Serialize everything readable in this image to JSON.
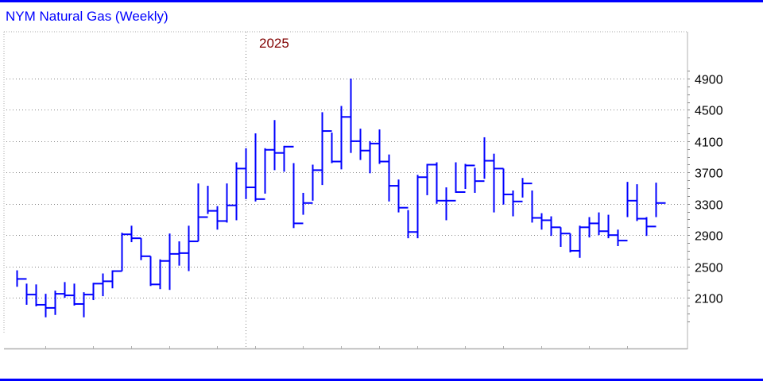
{
  "title": "NYM Natural Gas (Weekly)",
  "colors": {
    "bars": "#0000ff",
    "title": "#0000ff",
    "year_label": "#800000",
    "frame": "#0000ff",
    "grid": "#888888"
  },
  "chart_data": {
    "type": "ohlc-bar",
    "title": "NYM Natural Gas (Weekly)",
    "year_label": "2025",
    "bar_fields": [
      "high",
      "low",
      "close"
    ],
    "ylim": [
      1700,
      5000
    ],
    "y_ticks": [
      2100,
      2500,
      2900,
      3300,
      3700,
      4100,
      4500,
      4900
    ],
    "y_axis_side": "right",
    "grid": true,
    "bars": [
      [
        2450,
        2240,
        2340
      ],
      [
        2280,
        2010,
        2140
      ],
      [
        2270,
        1990,
        2010
      ],
      [
        2150,
        1850,
        1970
      ],
      [
        2190,
        1880,
        2150
      ],
      [
        2300,
        2100,
        2130
      ],
      [
        2280,
        2000,
        2020
      ],
      [
        2170,
        1850,
        2140
      ],
      [
        2290,
        2070,
        2280
      ],
      [
        2410,
        2120,
        2310
      ],
      [
        2450,
        2220,
        2440
      ],
      [
        2930,
        2440,
        2910
      ],
      [
        3020,
        2810,
        2860
      ],
      [
        2860,
        2580,
        2630
      ],
      [
        2630,
        2250,
        2270
      ],
      [
        2590,
        2210,
        2570
      ],
      [
        2920,
        2200,
        2660
      ],
      [
        2820,
        2510,
        2670
      ],
      [
        3020,
        2440,
        2820
      ],
      [
        3560,
        2820,
        3130
      ],
      [
        3530,
        3170,
        3210
      ],
      [
        3270,
        2970,
        3080
      ],
      [
        3560,
        3060,
        3280
      ],
      [
        3830,
        3090,
        3750
      ],
      [
        4010,
        3360,
        3510
      ],
      [
        4200,
        3330,
        3360
      ],
      [
        4010,
        3430,
        3990
      ],
      [
        4370,
        3730,
        3950
      ],
      [
        4040,
        3710,
        4030
      ],
      [
        3820,
        2990,
        3050
      ],
      [
        3440,
        3160,
        3310
      ],
      [
        3800,
        3340,
        3730
      ],
      [
        4470,
        3540,
        4230
      ],
      [
        4210,
        3820,
        3840
      ],
      [
        4550,
        3740,
        4410
      ],
      [
        4900,
        3950,
        4100
      ],
      [
        4260,
        3860,
        3980
      ],
      [
        4100,
        3690,
        4070
      ],
      [
        4250,
        3810,
        3840
      ],
      [
        3930,
        3330,
        3530
      ],
      [
        3610,
        3190,
        3250
      ],
      [
        3220,
        2860,
        2940
      ],
      [
        3670,
        2860,
        3640
      ],
      [
        3810,
        3410,
        3800
      ],
      [
        3830,
        3300,
        3340
      ],
      [
        3510,
        3090,
        3340
      ],
      [
        3830,
        3440,
        3450
      ],
      [
        3810,
        3490,
        3790
      ],
      [
        3760,
        3440,
        3590
      ],
      [
        4150,
        3620,
        3850
      ],
      [
        3940,
        3190,
        3750
      ],
      [
        3750,
        3290,
        3420
      ],
      [
        3470,
        3140,
        3330
      ],
      [
        3630,
        3380,
        3560
      ],
      [
        3470,
        3060,
        3120
      ],
      [
        3180,
        2970,
        3090
      ],
      [
        3140,
        2890,
        3000
      ],
      [
        3000,
        2750,
        2920
      ],
      [
        2920,
        2680,
        2700
      ],
      [
        3020,
        2610,
        3000
      ],
      [
        3130,
        2870,
        3050
      ],
      [
        3190,
        2900,
        2950
      ],
      [
        3160,
        2860,
        2900
      ],
      [
        2970,
        2760,
        2830
      ],
      [
        3580,
        3130,
        3340
      ],
      [
        3550,
        3080,
        3110
      ],
      [
        3130,
        2890,
        3010
      ],
      [
        3570,
        3130,
        3310
      ]
    ]
  }
}
